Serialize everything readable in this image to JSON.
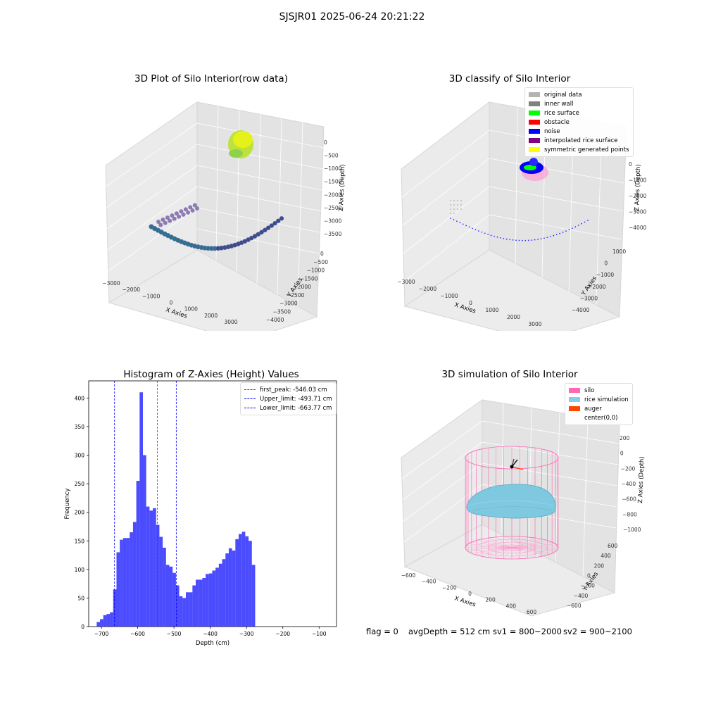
{
  "suptitle": "SJSJR01 2025-06-24 20:21:22",
  "panel1": {
    "title": "3D Plot of Silo Interior(row data)",
    "xlabel": "X Axies",
    "ylabel": "Y Axies",
    "zlabel": "Z Axies (Depth)",
    "xticks": [
      "−3000",
      "−2000",
      "−1000",
      "0",
      "1000",
      "2000",
      "3000"
    ],
    "yticks": [
      "0",
      "−500",
      "−1000",
      "−1500",
      "−2000",
      "−2500",
      "−3000",
      "−3500",
      "−4000"
    ],
    "zticks": [
      "0",
      "−500",
      "−1000",
      "−1500",
      "−2000",
      "−2500",
      "−3000",
      "−3500"
    ]
  },
  "panel2": {
    "title": "3D classify of Silo Interior",
    "xlabel": "X Axies",
    "ylabel": "Y Axies",
    "zlabel": "Z Axies (Depth)",
    "xticks": [
      "−3000",
      "−2000",
      "−1000",
      "0",
      "1000",
      "2000",
      "3000"
    ],
    "yticks": [
      "1000",
      "0",
      "−1000",
      "−2000",
      "−3000",
      "−4000"
    ],
    "zticks": [
      "0",
      "−1000",
      "−2000",
      "−3000",
      "−4000"
    ],
    "legend": [
      {
        "label": "original data",
        "color": "#b3b3b3"
      },
      {
        "label": "inner wall",
        "color": "#808080"
      },
      {
        "label": "rice surface",
        "color": "#00ff00"
      },
      {
        "label": "obstacle",
        "color": "#ff0000"
      },
      {
        "label": "noise",
        "color": "#0000ff"
      },
      {
        "label": "interpolated rice surface",
        "color": "#800080"
      },
      {
        "label": "symmetric generated points",
        "color": "#ffff00"
      }
    ]
  },
  "panel4": {
    "title": "3D simulation of Silo Interior",
    "xlabel": "X Axies",
    "ylabel": "Y Axies",
    "zlabel": "Z Axies (Depth)",
    "xticks": [
      "−600",
      "−400",
      "−200",
      "0",
      "200",
      "400",
      "600"
    ],
    "yticks": [
      "600",
      "400",
      "200",
      "0",
      "−200",
      "−400",
      "−600"
    ],
    "zticks": [
      "200",
      "0",
      "−200",
      "−400",
      "−600",
      "−800",
      "−1000"
    ],
    "legend": [
      {
        "label": "silo",
        "color": "#ff69b4"
      },
      {
        "label": "rice simulation",
        "color": "#87ceeb"
      },
      {
        "label": "auger",
        "color": "#ff4500"
      },
      {
        "label": "center(0,0)",
        "color": ""
      }
    ]
  },
  "footer": {
    "flag": "flag = 0",
    "avg": "avgDepth = 512 cm",
    "sv1": "sv1 = 800~2000",
    "sv2": "sv2 = 900~2100"
  },
  "chart_data": [
    {
      "type": "bar",
      "title": "Histogram of Z-Axies (Height) Values",
      "xlabel": "Depth (cm)",
      "ylabel": "Frequency",
      "xlim": [
        -735,
        -52
      ],
      "ylim": [
        0,
        430
      ],
      "xticks": [
        -700,
        -600,
        -500,
        -400,
        -300,
        -200,
        -100
      ],
      "yticks": [
        0,
        50,
        100,
        150,
        200,
        250,
        300,
        350,
        400
      ],
      "color": "#0000ff",
      "bin_start": -713,
      "bin_width": 9.1,
      "values": [
        8,
        13,
        20,
        22,
        25,
        65,
        130,
        152,
        155,
        155,
        165,
        183,
        255,
        410,
        300,
        210,
        203,
        207,
        178,
        157,
        138,
        108,
        105,
        94,
        72,
        53,
        50,
        60,
        60,
        72,
        82,
        82,
        85,
        92,
        93,
        98,
        103,
        110,
        118,
        128,
        137,
        133,
        153,
        162,
        166,
        158,
        150,
        108
      ],
      "vlines": [
        {
          "label": "first_peak: -546.03 cm",
          "x": -546.03,
          "color": "#ff0000"
        },
        {
          "label": "Upper_limit: -493.71 cm",
          "x": -493.71,
          "color": "#0000ff"
        },
        {
          "label": "Lower_limit: -663.77 cm",
          "x": -663.77,
          "color": "#0000ff"
        }
      ],
      "legend_position": "top-right"
    }
  ]
}
